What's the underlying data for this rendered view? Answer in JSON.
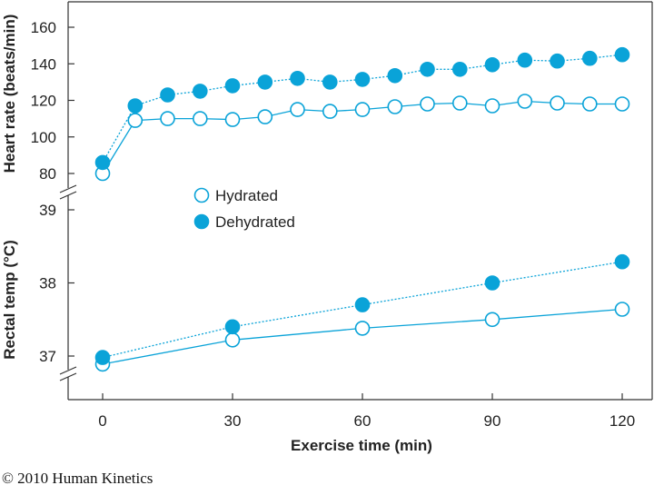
{
  "copyright": "© 2010 Human Kinetics",
  "colors": {
    "series": "#0aa3d8",
    "axis": "#333333",
    "marker_edge": "#0aa3d8",
    "hollow_fill": "#ffffff"
  },
  "chart_data": [
    {
      "type": "line",
      "panel": "top",
      "ylabel": "Heart rate (beats/min)",
      "xlabel": "",
      "ylim": [
        72,
        170
      ],
      "yticks": [
        80,
        100,
        120,
        140,
        160
      ],
      "xlim": [
        -6,
        124
      ],
      "series": [
        {
          "name": "Hydrated",
          "marker": "hollow",
          "line": "solid",
          "x": [
            0,
            7.5,
            15,
            22.5,
            30,
            37.5,
            45,
            52.5,
            60,
            67.5,
            75,
            82.5,
            90,
            97.5,
            105,
            112.5,
            120
          ],
          "values": [
            80,
            109,
            110,
            110,
            109.5,
            111,
            115,
            114,
            115,
            116.5,
            118,
            118.5,
            117,
            119.5,
            118.5,
            118,
            118
          ]
        },
        {
          "name": "Dehydrated",
          "marker": "filled",
          "line": "dotted",
          "x": [
            0,
            7.5,
            15,
            22.5,
            30,
            37.5,
            45,
            52.5,
            60,
            67.5,
            75,
            82.5,
            90,
            97.5,
            105,
            112.5,
            120
          ],
          "values": [
            86,
            117,
            123,
            125,
            128,
            130,
            132,
            130,
            131.5,
            133.5,
            137,
            137,
            139.5,
            142,
            141.5,
            143,
            145
          ]
        }
      ]
    },
    {
      "type": "line",
      "panel": "bottom",
      "ylabel": "Rectal temp (°C)",
      "xlabel": "Exercise time (min)",
      "ylim": [
        36.8,
        39.0
      ],
      "yticks": [
        37,
        38,
        39
      ],
      "xlim": [
        -6,
        124
      ],
      "xticks": [
        0,
        30,
        60,
        90,
        120
      ],
      "series": [
        {
          "name": "Hydrated",
          "marker": "hollow",
          "line": "solid",
          "x": [
            0,
            30,
            60,
            90,
            120
          ],
          "values": [
            36.89,
            37.22,
            37.38,
            37.5,
            37.64
          ]
        },
        {
          "name": "Dehydrated",
          "marker": "filled",
          "line": "dotted",
          "x": [
            0,
            30,
            60,
            90,
            120
          ],
          "values": [
            36.98,
            37.4,
            37.7,
            38.0,
            38.29
          ]
        }
      ]
    }
  ],
  "legend": {
    "items": [
      {
        "label": "Hydrated",
        "marker": "hollow"
      },
      {
        "label": "Dehydrated",
        "marker": "filled"
      }
    ]
  }
}
